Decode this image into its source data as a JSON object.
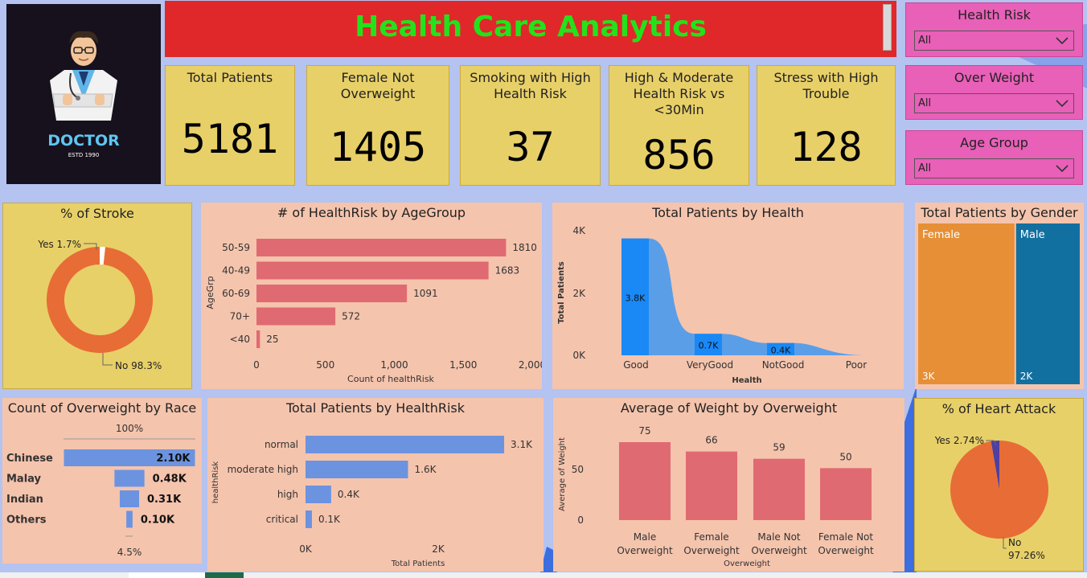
{
  "header": {
    "title": "Health Care Analytics"
  },
  "logo": {
    "title": "DOCTOR",
    "subtitle": "ESTD 1990"
  },
  "kpis": [
    {
      "label": "Total Patients",
      "value": "5181"
    },
    {
      "label": "Female Not Overweight",
      "value": "1405"
    },
    {
      "label": "Smoking with High Health Risk",
      "value": "37"
    },
    {
      "label": "High & Moderate Health Risk vs <30Min",
      "value": "856"
    },
    {
      "label": "Stress with High Trouble",
      "value": "128"
    }
  ],
  "slicers": [
    {
      "label": "Health Risk",
      "value": "All"
    },
    {
      "label": "Over Weight",
      "value": "All"
    },
    {
      "label": "Age Group",
      "value": "All"
    }
  ],
  "colors": {
    "accent_orange": "#e86c36",
    "bar_red": "#e06a72",
    "bar_blue": "#6c93e0",
    "bar_blue_deep": "#1a88f5",
    "female": "#e68f36",
    "male": "#1270a0"
  },
  "chart_data": [
    {
      "type": "pie",
      "title": "% of Stroke",
      "categories": [
        "Yes",
        "No"
      ],
      "values": [
        1.7,
        98.3
      ],
      "labels": [
        "Yes 1.7%",
        "No 98.3%"
      ]
    },
    {
      "type": "bar",
      "title": "# of HealthRisk by AgeGroup",
      "categories": [
        "50-59",
        "40-49",
        "60-69",
        "70+",
        "<40"
      ],
      "values": [
        1810,
        1683,
        1091,
        572,
        25
      ],
      "value_labels": [
        "1810",
        "1683",
        "1091",
        "572",
        "25"
      ],
      "xlabel": "Count of healthRisk",
      "ylabel": "AgeGrp",
      "xticks": [
        "0",
        "500",
        "1,000",
        "1,500",
        "2,000"
      ],
      "xlim": [
        0,
        2000
      ]
    },
    {
      "type": "area",
      "title": "Total Patients by Health",
      "categories": [
        "Good",
        "VeryGood",
        "NotGood",
        "Poor"
      ],
      "values": [
        3800,
        700,
        400,
        0
      ],
      "value_labels": [
        "3.8K",
        "0.7K",
        "0.4K",
        ""
      ],
      "xlabel": "Health",
      "ylabel": "Total Patients",
      "yticks": [
        "0K",
        "2K",
        "4K"
      ],
      "ylim": [
        0,
        4000
      ]
    },
    {
      "type": "heatmap",
      "title": "Total Patients by Gender",
      "categories": [
        "Female",
        "Male"
      ],
      "values": [
        3000,
        2000
      ],
      "value_labels": [
        "3K",
        "2K"
      ]
    },
    {
      "type": "bar",
      "title": "Count of Overweight by Race",
      "categories": [
        "Chinese",
        "Malay",
        "Indian",
        "Others"
      ],
      "values": [
        2.1,
        0.48,
        0.31,
        0.1
      ],
      "value_labels": [
        "2.10K",
        "0.48K",
        "0.31K",
        "0.10K"
      ],
      "top_label": "100%",
      "bottom_label": "4.5%"
    },
    {
      "type": "bar",
      "title": "Total Patients by HealthRisk",
      "categories": [
        "normal",
        "moderate high",
        "high",
        "critical"
      ],
      "values": [
        3100,
        1600,
        400,
        100
      ],
      "value_labels": [
        "3.1K",
        "1.6K",
        "0.4K",
        "0.1K"
      ],
      "xlabel": "Total Patients",
      "ylabel": "healthRisk",
      "xticks": [
        "0K",
        "2K"
      ],
      "xlim": [
        0,
        3200
      ]
    },
    {
      "type": "bar",
      "title": "Average of Weight by Overweight",
      "categories": [
        "Male Overweight",
        "Female Overweight",
        "Male Not Overweight",
        "Female Not Overweight"
      ],
      "values": [
        75,
        66,
        59,
        50
      ],
      "value_labels": [
        "75",
        "66",
        "59",
        "50"
      ],
      "xlabel": "Overweight",
      "ylabel": "Average of Weight",
      "yticks": [
        "0",
        "50"
      ],
      "ylim": [
        0,
        80
      ]
    },
    {
      "type": "pie",
      "title": "% of Heart Attack",
      "categories": [
        "Yes",
        "No"
      ],
      "values": [
        2.74,
        97.26
      ],
      "labels": [
        "Yes 2.74%",
        "No",
        "97.26%"
      ]
    }
  ]
}
